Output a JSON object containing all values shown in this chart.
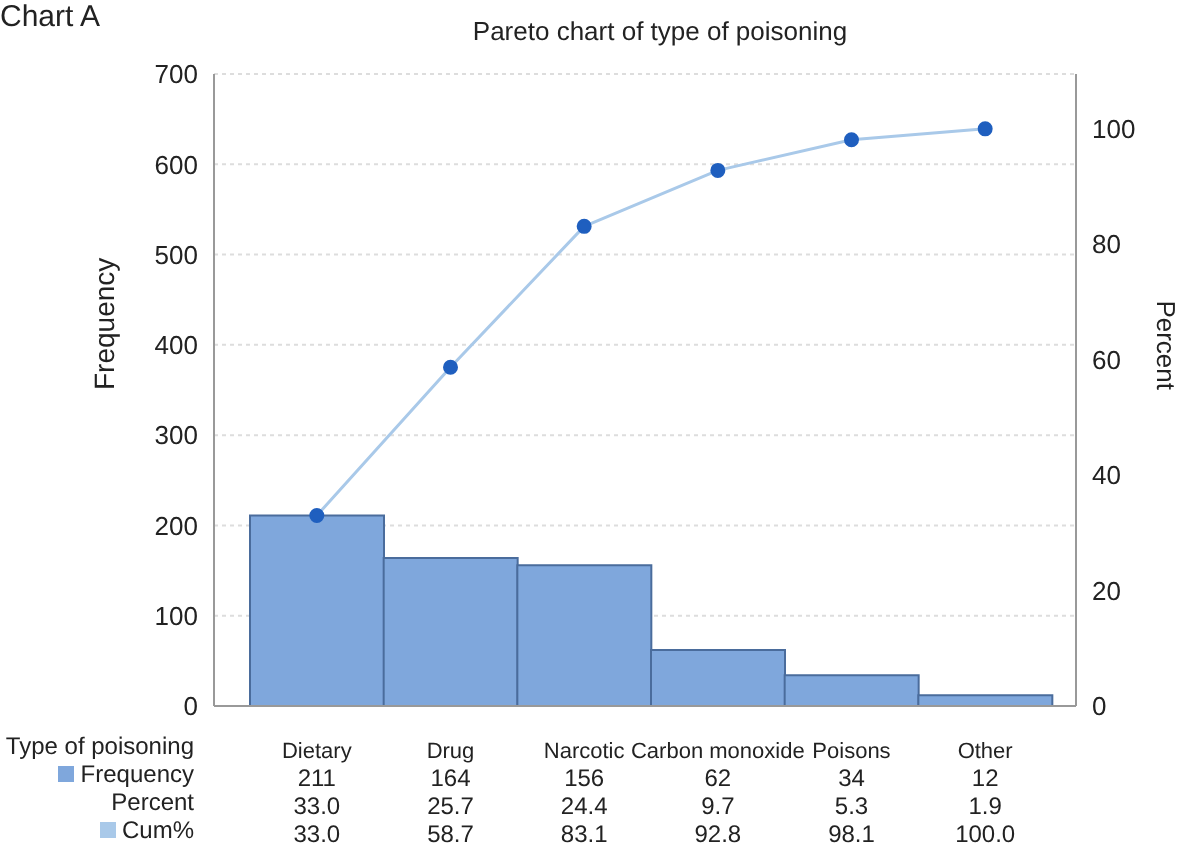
{
  "chart_data": {
    "type": "bar",
    "title": "Pareto chart of type of poisoning",
    "xlabel": "Type of poisoning",
    "ylabel": "Frequency",
    "y2label": "Percent",
    "categories": [
      "Dietary",
      "Drug",
      "Narcotic",
      "Carbon monoxide",
      "Poisons",
      "Other"
    ],
    "series": [
      {
        "name": "Frequency",
        "color": "#7fa7dc",
        "values": [
          211,
          164,
          156,
          62,
          34,
          12
        ],
        "value_labels": [
          "211",
          "164",
          "156",
          "62",
          "34",
          "12"
        ]
      },
      {
        "name": "Cum%",
        "type": "line",
        "axis": "y2",
        "color": "#a9c9e9",
        "values": [
          33.0,
          58.7,
          83.1,
          92.8,
          98.1,
          100.0
        ],
        "value_labels": [
          "33.0",
          "58.7",
          "83.1",
          "92.8",
          "98.1",
          "100.0"
        ]
      }
    ],
    "ylim": [
      0,
      700
    ],
    "yticks": [
      0,
      100,
      200,
      300,
      400,
      500,
      600,
      700
    ],
    "y2lim": [
      0,
      109.5
    ],
    "y2ticks": [
      0,
      20,
      40,
      60,
      80,
      100
    ],
    "grid": "y",
    "legend": "bottom left",
    "marker": "circle",
    "line_style": "solid",
    "annotations": [
      "Chart A",
      "Percent",
      "33.0",
      "25.7",
      "24.4",
      "9.7",
      "5.3",
      "1.9"
    ]
  }
}
